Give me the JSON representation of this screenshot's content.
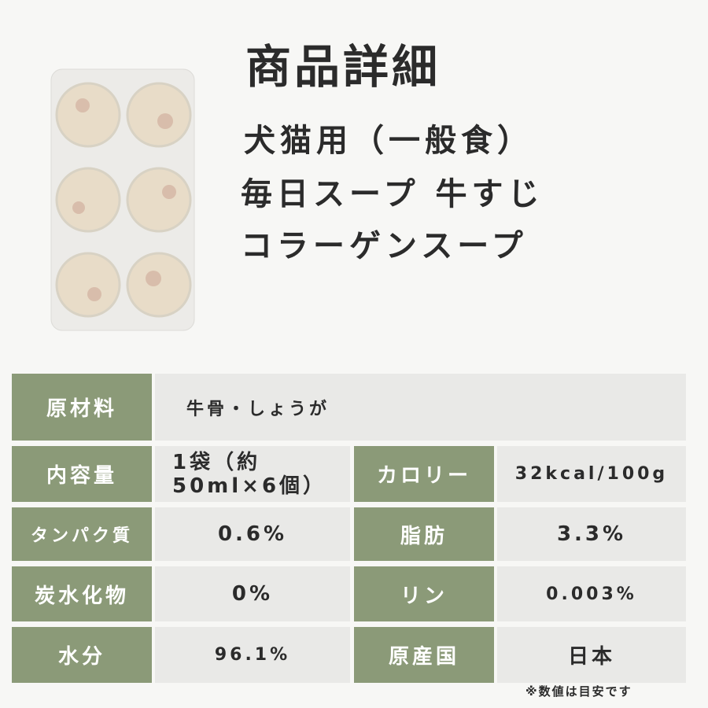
{
  "header": {
    "title": "商品詳細",
    "subtitle_lines": [
      "犬猫用（一般食）",
      "毎日スープ 牛すじ",
      "コラーゲンスープ"
    ]
  },
  "table": {
    "rows": [
      [
        "原材料",
        "牛骨・しょうが"
      ],
      [
        "内容量",
        [
          "1袋（約",
          "50ml×6個）"
        ],
        "カロリー",
        "32kcal/100g"
      ],
      [
        "タンパク質",
        "0.6%",
        "脂肪",
        "3.3%"
      ],
      [
        "炭水化物",
        "0%",
        "リン",
        "0.003%"
      ],
      [
        "水分",
        "96.1%",
        "原産国",
        "日本"
      ]
    ]
  },
  "note": "※数値は目安です"
}
